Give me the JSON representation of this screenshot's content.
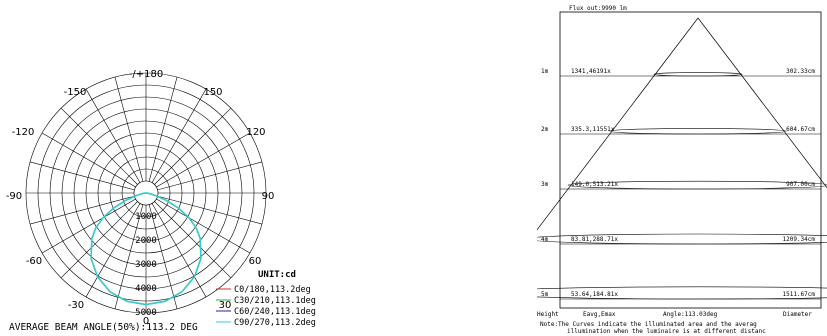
{
  "chart_data": [
    {
      "type": "polar",
      "unit_label": "UNIT:cd",
      "angle_labels": [
        "-/+180",
        "-150",
        "150",
        "-120",
        "120",
        "-90",
        "90",
        "-60",
        "60",
        "-30",
        "30",
        "0"
      ],
      "ring_labels": [
        "1000",
        "2000",
        "3000",
        "4000",
        "5000"
      ],
      "rlim": [
        0,
        5000
      ],
      "series": [
        {
          "name": "C0/180,113.2deg",
          "color": "#cc3333"
        },
        {
          "name": "C30/210,113.1deg",
          "color": "#33aa33"
        },
        {
          "name": "C60/240,113.1deg",
          "color": "#2222aa"
        },
        {
          "name": "C90/270,113.2deg",
          "color": "#33cccc"
        }
      ],
      "curve": {
        "angles_deg": [
          0,
          10,
          20,
          30,
          40,
          50,
          55,
          60,
          65,
          70,
          75,
          80,
          85,
          90
        ],
        "intensity_cd": [
          4650,
          4580,
          4380,
          4030,
          3560,
          2950,
          2560,
          2080,
          1500,
          900,
          420,
          180,
          60,
          0
        ]
      },
      "caption": "AVERAGE BEAM ANGLE(50%):113.2 DEG"
    },
    {
      "type": "table",
      "flux_label": "Flux out:9990 lm",
      "rows": [
        {
          "height": "1m",
          "illum": "1341,46191x",
          "diameter": "302.33cm"
        },
        {
          "height": "2m",
          "illum": "335.3,11551x",
          "diameter": "604.67cm"
        },
        {
          "height": "3m",
          "illum": "149.0,513.21x",
          "diameter": "907.00cm"
        },
        {
          "height": "4m",
          "illum": "83.81,288.71x",
          "diameter": "1209.34cm"
        },
        {
          "height": "5m",
          "illum": "53.64,184.81x",
          "diameter": "1511.67cm"
        }
      ],
      "footer": {
        "height": "Height",
        "eavg": "Eavg,Emax",
        "angle": "Angle:113.03deg",
        "diameter": "Diameter"
      },
      "note_line1": "Note:The Curves indicate the illuminated area and the averag",
      "note_line2": "illumination when the luminaire is at different distanc"
    }
  ]
}
